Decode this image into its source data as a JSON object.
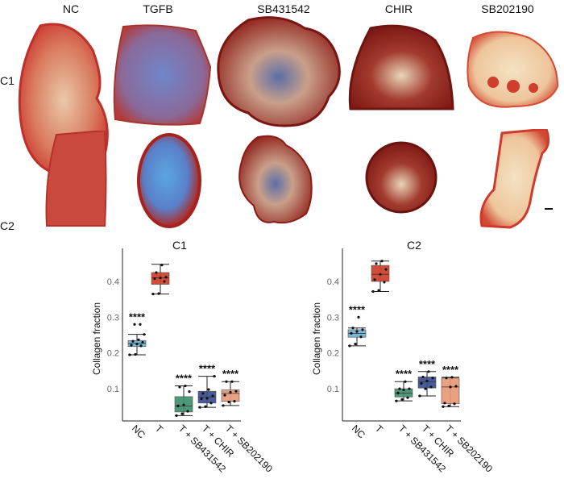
{
  "figure": {
    "column_labels": [
      "NC",
      "TGFB",
      "SB431542",
      "CHIR",
      "SB202190"
    ],
    "row_labels": [
      "C1",
      "C2"
    ]
  },
  "chart_data": [
    {
      "type": "box",
      "title": "C1",
      "xlabel": "",
      "ylabel": "Collagen fraction",
      "categories": [
        "NC",
        "T",
        "T + SB431542",
        "T + CHIR",
        "T + SB202190"
      ],
      "yticks": [
        "0.1",
        "0.2",
        "0.3",
        "0.4"
      ],
      "ylim": [
        0.01,
        0.47
      ],
      "grid": false,
      "significance": [
        "****",
        "",
        "****",
        "****",
        "****"
      ],
      "series": [
        {
          "name": "NC",
          "color": "#6fb0d2",
          "min": 0.195,
          "q1": 0.218,
          "median": 0.227,
          "q3": 0.235,
          "max": 0.252,
          "points": [
            0.195,
            0.196,
            0.22,
            0.222,
            0.225,
            0.23,
            0.233,
            0.237,
            0.252,
            0.28,
            0.28
          ]
        },
        {
          "name": "T",
          "color": "#d0402a",
          "min": 0.365,
          "q1": 0.392,
          "median": 0.41,
          "q3": 0.425,
          "max": 0.448,
          "points": [
            0.365,
            0.366,
            0.4,
            0.408,
            0.41,
            0.412,
            0.425,
            0.446
          ]
        },
        {
          "name": "T + SB431542",
          "color": "#3f8f6e",
          "min": 0.025,
          "q1": 0.035,
          "median": 0.052,
          "q3": 0.078,
          "max": 0.108,
          "points": [
            0.025,
            0.03,
            0.037,
            0.052,
            0.055,
            0.092,
            0.105,
            0.108
          ]
        },
        {
          "name": "T + CHIR",
          "color": "#3a4f91",
          "min": 0.048,
          "q1": 0.06,
          "median": 0.077,
          "q3": 0.093,
          "max": 0.135,
          "points": [
            0.048,
            0.05,
            0.06,
            0.072,
            0.073,
            0.08,
            0.087,
            0.098,
            0.135
          ]
        },
        {
          "name": "T + SB202190",
          "color": "#e89a77",
          "min": 0.053,
          "q1": 0.065,
          "median": 0.087,
          "q3": 0.097,
          "max": 0.12,
          "points": [
            0.053,
            0.063,
            0.065,
            0.082,
            0.09,
            0.093,
            0.12,
            0.12
          ]
        }
      ]
    },
    {
      "type": "box",
      "title": "C2",
      "xlabel": "",
      "ylabel": "Collagen fraction",
      "categories": [
        "NC",
        "T",
        "T + SB431542",
        "T + CHIR",
        "T + SB202190"
      ],
      "yticks": [
        "0.1",
        "0.2",
        "0.3",
        "0.4"
      ],
      "ylim": [
        0.01,
        0.47
      ],
      "grid": false,
      "significance": [
        "****",
        "",
        "****",
        "****",
        "****"
      ],
      "series": [
        {
          "name": "NC",
          "color": "#6fb0d2",
          "min": 0.22,
          "q1": 0.244,
          "median": 0.255,
          "q3": 0.265,
          "max": 0.27,
          "points": [
            0.22,
            0.225,
            0.245,
            0.255,
            0.26,
            0.265,
            0.27,
            0.3
          ]
        },
        {
          "name": "T",
          "color": "#d0402a",
          "min": 0.372,
          "q1": 0.4,
          "median": 0.42,
          "q3": 0.445,
          "max": 0.457,
          "points": [
            0.372,
            0.375,
            0.398,
            0.405,
            0.42,
            0.434,
            0.45,
            0.457
          ]
        },
        {
          "name": "T + SB431542",
          "color": "#3f8f6e",
          "min": 0.066,
          "q1": 0.077,
          "median": 0.088,
          "q3": 0.1,
          "max": 0.12,
          "points": [
            0.066,
            0.07,
            0.075,
            0.088,
            0.097,
            0.1,
            0.1,
            0.12
          ]
        },
        {
          "name": "T + CHIR",
          "color": "#3a4f91",
          "min": 0.08,
          "q1": 0.102,
          "median": 0.12,
          "q3": 0.133,
          "max": 0.148,
          "points": [
            0.08,
            0.1,
            0.105,
            0.115,
            0.122,
            0.13,
            0.133,
            0.148
          ]
        },
        {
          "name": "T + SB202190",
          "color": "#e89a77",
          "min": 0.05,
          "q1": 0.058,
          "median": 0.105,
          "q3": 0.13,
          "max": 0.132,
          "points": [
            0.05,
            0.052,
            0.058,
            0.06,
            0.105,
            0.107,
            0.13,
            0.132
          ]
        }
      ]
    }
  ]
}
